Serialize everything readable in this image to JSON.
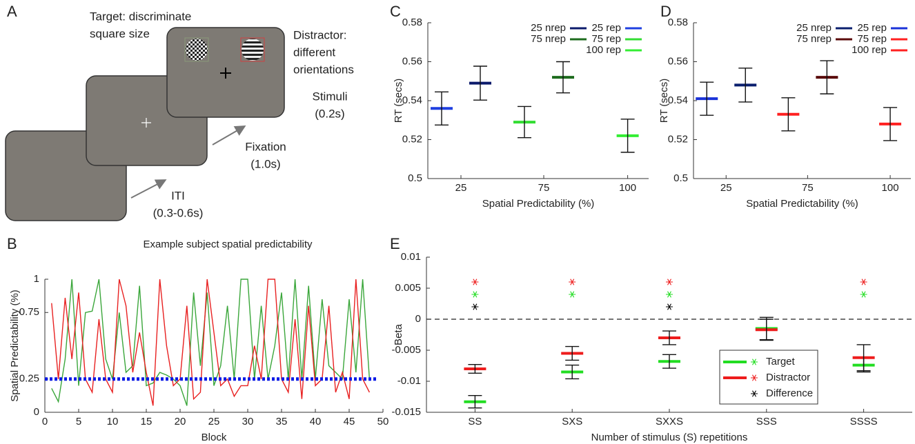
{
  "diagram": {
    "panel_label": "A",
    "target": [
      "Target: discriminate",
      "square size"
    ],
    "distractor": [
      "Distractor:",
      "different",
      "orientations"
    ],
    "stimuli": [
      "Stimuli",
      "(0.2s)"
    ],
    "fixation": [
      "Fixation",
      "(1.0s)"
    ],
    "iti": [
      "ITI",
      "(0.3-0.6s)"
    ]
  },
  "chart_data": [
    {
      "type": "line",
      "panel_label": "B",
      "title": "Example subject spatial predictability",
      "xlabel": "Block",
      "ylabel": "Spatial Predictability (%)",
      "x": [
        1,
        2,
        3,
        4,
        5,
        6,
        7,
        8,
        9,
        10,
        11,
        12,
        13,
        14,
        15,
        16,
        17,
        18,
        19,
        20,
        21,
        22,
        23,
        24,
        25,
        26,
        27,
        28,
        29,
        30,
        31,
        32,
        33,
        34,
        35,
        36,
        37,
        38,
        39,
        40,
        41,
        42,
        43,
        44,
        45,
        46,
        47,
        48
      ],
      "xlim": [
        0,
        50
      ],
      "xticks": [
        0,
        5,
        10,
        15,
        20,
        25,
        30,
        35,
        40,
        45,
        50
      ],
      "ylim": [
        0,
        1
      ],
      "yticks": [
        0,
        0.25,
        0.75,
        1
      ],
      "reference_line": 0.25,
      "reference_color": "#0a1ae6",
      "series": [
        {
          "color": "#3aa63a",
          "values": [
            0.18,
            0.08,
            0.4,
            1.0,
            0.2,
            0.75,
            0.76,
            1.0,
            0.4,
            0.25,
            0.75,
            0.3,
            0.35,
            0.95,
            0.2,
            0.22,
            0.3,
            0.28,
            0.25,
            0.2,
            0.05,
            0.9,
            0.35,
            0.9,
            0.2,
            0.35,
            0.8,
            0.25,
            1.0,
            1.0,
            0.25,
            0.8,
            0.25,
            0.5,
            0.9,
            0.25,
            1.0,
            0.25,
            0.95,
            0.25,
            0.85,
            0.35,
            0.3,
            0.25,
            0.85,
            0.3,
            1.0,
            0.25
          ]
        },
        {
          "color": "#e82020",
          "values": [
            0.82,
            0.25,
            0.86,
            0.4,
            0.9,
            0.25,
            0.15,
            0.7,
            0.25,
            0.15,
            1.0,
            0.8,
            0.3,
            0.6,
            0.3,
            0.05,
            1.0,
            0.5,
            0.2,
            0.25,
            0.8,
            0.1,
            0.15,
            1.0,
            0.6,
            0.2,
            0.25,
            0.12,
            0.2,
            0.2,
            0.5,
            0.25,
            1.0,
            1.0,
            0.25,
            0.15,
            0.7,
            0.1,
            0.8,
            0.2,
            0.25,
            0.8,
            0.15,
            0.3,
            0.1,
            1.0,
            0.25,
            0.15
          ]
        }
      ]
    },
    {
      "type": "errorbar",
      "panel_label": "C",
      "xlabel": "Spatial Predictability (%)",
      "ylabel": "RT (secs)",
      "categories": [
        "25",
        "75",
        "100"
      ],
      "ylim": [
        0.5,
        0.58
      ],
      "yticks": [
        0.5,
        0.52,
        0.54,
        0.56,
        0.58
      ],
      "series": [
        {
          "name": "25 nrep",
          "color": "#0b1a6b",
          "values": [
            0.549,
            null,
            null
          ],
          "errors": [
            0.0087,
            null,
            null
          ]
        },
        {
          "name": "75 nrep",
          "color": "#1d6b1d",
          "values": [
            null,
            0.552,
            null
          ],
          "errors": [
            null,
            0.008,
            null
          ]
        },
        {
          "name": "25 rep",
          "color": "#1f3fe0",
          "values": [
            0.536,
            null,
            null
          ],
          "errors": [
            0.0085,
            null,
            null
          ]
        },
        {
          "name": "75 rep",
          "color": "#33dd33",
          "values": [
            null,
            0.529,
            null
          ],
          "errors": [
            null,
            0.008,
            null
          ]
        },
        {
          "name": "100 rep",
          "color": "#33ee33",
          "values": [
            null,
            null,
            0.522
          ],
          "errors": [
            null,
            null,
            0.0085
          ]
        }
      ]
    },
    {
      "type": "errorbar",
      "panel_label": "D",
      "xlabel": "Spatial Predictability (%)",
      "ylabel": "RT (secs)",
      "categories": [
        "25",
        "75",
        "100"
      ],
      "ylim": [
        0.5,
        0.58
      ],
      "yticks": [
        0.5,
        0.52,
        0.54,
        0.56,
        0.58
      ],
      "series": [
        {
          "name": "25 nrep",
          "color": "#0a1f6e",
          "values": [
            0.548,
            null,
            null
          ],
          "errors": [
            0.0087,
            null,
            null
          ]
        },
        {
          "name": "75 nrep",
          "color": "#5a0a0a",
          "values": [
            null,
            0.552,
            null
          ],
          "errors": [
            null,
            0.0085,
            null
          ]
        },
        {
          "name": "25 rep",
          "color": "#1a32d8",
          "values": [
            0.541,
            null,
            null
          ],
          "errors": [
            0.0085,
            null,
            null
          ]
        },
        {
          "name": "75 rep",
          "color": "#ff2020",
          "values": [
            null,
            0.533,
            null
          ],
          "errors": [
            null,
            0.0085,
            null
          ]
        },
        {
          "name": "100 rep",
          "color": "#ff2020",
          "values": [
            null,
            null,
            0.528
          ],
          "errors": [
            null,
            null,
            0.0085
          ]
        }
      ]
    },
    {
      "type": "errorbar",
      "panel_label": "E",
      "xlabel": "Number of stimulus (S) repetitions",
      "ylabel": "Beta",
      "categories": [
        "SS",
        "SXS",
        "SXXS",
        "SSS",
        "SSSS"
      ],
      "ylim": [
        -0.015,
        0.01
      ],
      "yticks": [
        -0.015,
        -0.01,
        -0.005,
        0,
        0.005,
        0.01
      ],
      "zero_line": true,
      "series": [
        {
          "name": "Target",
          "color": "#22dd22",
          "values": [
            -0.0133,
            -0.0085,
            -0.0068,
            -0.0015,
            -0.0074
          ],
          "errors": [
            0.001,
            0.0011,
            0.0011,
            0.0018,
            0.0011
          ],
          "significance": [
            0.004,
            0.004,
            0.004,
            null,
            0.004
          ]
        },
        {
          "name": "Distractor",
          "color": "#ee1c1c",
          "values": [
            -0.008,
            -0.0055,
            -0.003,
            -0.0017,
            -0.0062
          ],
          "errors": [
            0.0007,
            0.0011,
            0.0011,
            0.0017,
            0.0021
          ],
          "significance": [
            0.006,
            0.006,
            0.006,
            null,
            0.006
          ]
        },
        {
          "name": "Difference",
          "color": "#000000",
          "significance": [
            0.002,
            null,
            0.002,
            null,
            null
          ]
        }
      ]
    }
  ]
}
